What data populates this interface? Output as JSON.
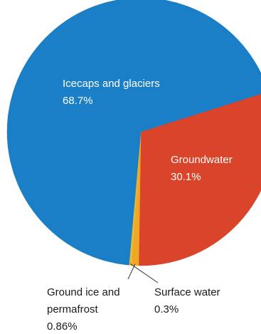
{
  "chart_data": {
    "type": "pie",
    "slices": [
      {
        "label": "Icecaps and glaciers",
        "label_lines": [
          "Icecaps and glaciers"
        ],
        "value_label": "68.7%",
        "value": 68.7,
        "color": "#1a7fc7"
      },
      {
        "label": "Groundwater",
        "label_lines": [
          "Groundwater"
        ],
        "value_label": "30.1%",
        "value": 30.1,
        "color": "#d9442a"
      },
      {
        "label": "Surface water",
        "label_lines": [
          "Surface water"
        ],
        "value_label": "0.3%",
        "value": 0.3,
        "color": "#e9b93a"
      },
      {
        "label": "Ground ice and permafrost",
        "label_lines": [
          "Ground ice and",
          "permafrost"
        ],
        "value_label": "0.86%",
        "value": 0.86,
        "color": "#f0a824"
      }
    ]
  }
}
